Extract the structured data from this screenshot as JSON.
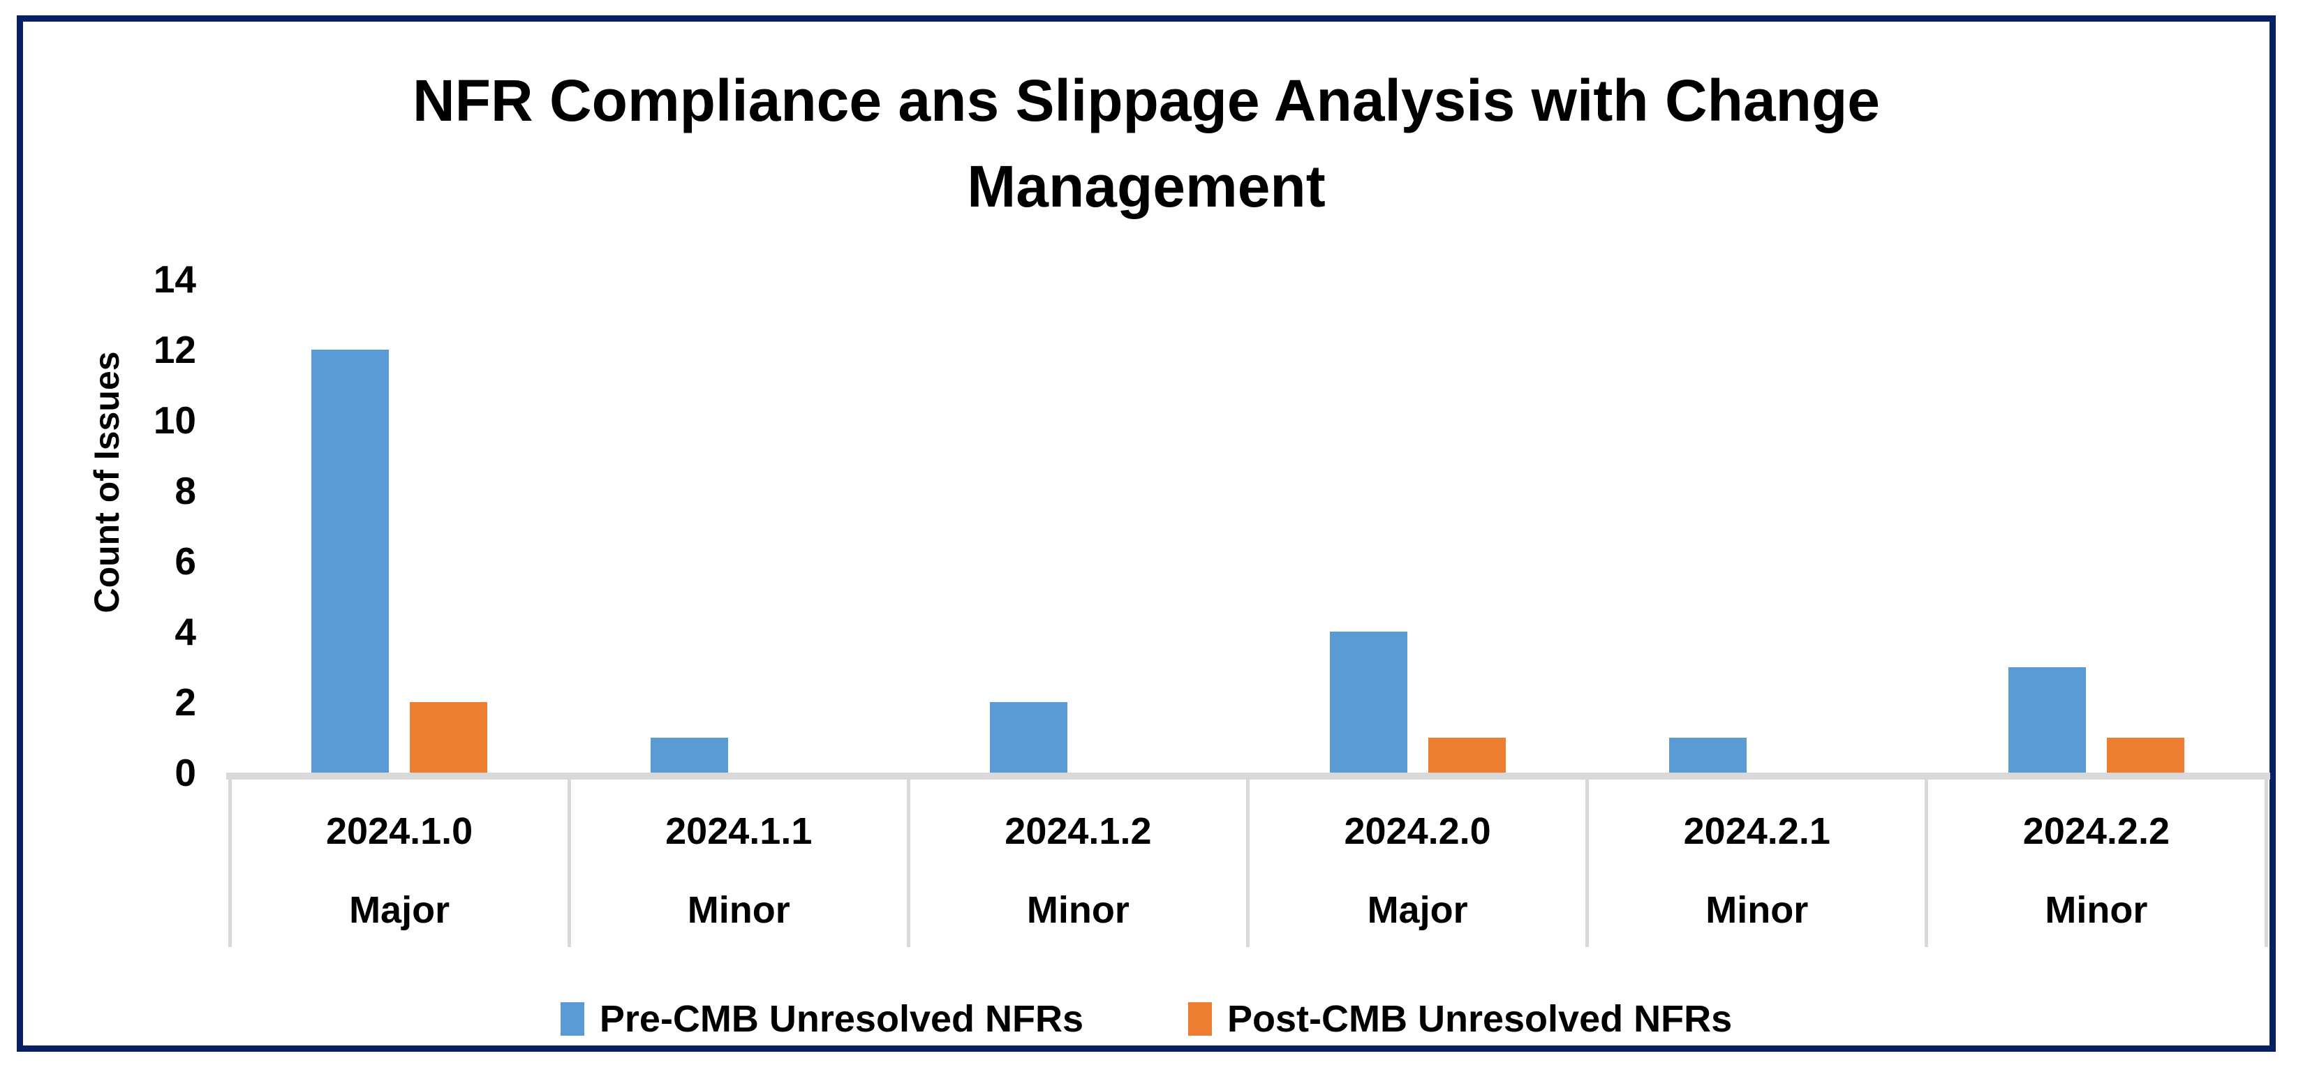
{
  "chart_data": {
    "type": "bar",
    "title": "NFR Compliance ans Slippage Analysis with Change Management",
    "ylabel": "Count of Issues",
    "ylim": [
      0,
      14
    ],
    "yticks": [
      0,
      2,
      4,
      6,
      8,
      10,
      12,
      14
    ],
    "grid": false,
    "legend_position": "bottom",
    "categories": [
      {
        "version": "2024.1.0",
        "release_type": "Major"
      },
      {
        "version": "2024.1.1",
        "release_type": "Minor"
      },
      {
        "version": "2024.1.2",
        "release_type": "Minor"
      },
      {
        "version": "2024.2.0",
        "release_type": "Major"
      },
      {
        "version": "2024.2.1",
        "release_type": "Minor"
      },
      {
        "version": "2024.2.2",
        "release_type": "Minor"
      }
    ],
    "series": [
      {
        "name": "Pre-CMB Unresolved NFRs",
        "color": "#5B9BD5",
        "values": [
          12,
          1,
          2,
          4,
          1,
          3
        ]
      },
      {
        "name": "Post-CMB Unresolved NFRs",
        "color": "#ED7D31",
        "values": [
          2,
          0,
          0,
          1,
          0,
          1
        ]
      }
    ],
    "colors": {
      "axis_line": "#D9D9D9",
      "frame_border": "#062061",
      "text": "#000000"
    }
  }
}
